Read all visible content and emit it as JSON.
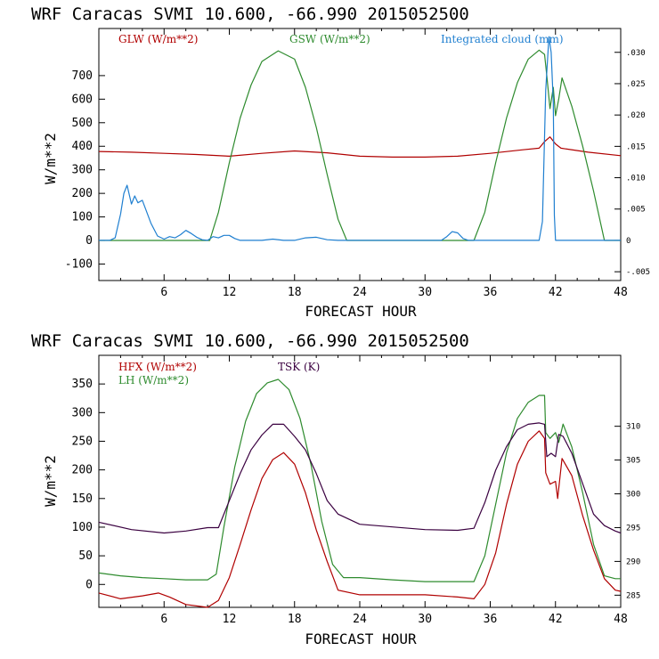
{
  "chart_data": [
    {
      "type": "line",
      "title": "WRF   Caracas SVMI  10.600, -66.990  2015052500",
      "xlabel": "FORECAST HOUR",
      "ylabel": "W/m**2",
      "xlim": [
        0,
        48
      ],
      "ylim": [
        -170,
        900
      ],
      "y2lim": [
        -0.0064,
        0.0338
      ],
      "xticks": [
        6,
        12,
        18,
        24,
        30,
        36,
        42,
        48
      ],
      "yticks": [
        -100,
        0,
        100,
        200,
        300,
        400,
        500,
        600,
        700
      ],
      "y2ticks": [
        {
          "v": -0.005,
          "label": "-.005"
        },
        {
          "v": 0,
          "label": "0"
        },
        {
          "v": 0.005,
          "label": ".005"
        },
        {
          "v": 0.01,
          "label": ".010"
        },
        {
          "v": 0.015,
          "label": ".015"
        },
        {
          "v": 0.02,
          "label": ".020"
        },
        {
          "v": 0.025,
          "label": ".025"
        },
        {
          "v": 0.03,
          "label": ".030"
        }
      ],
      "series": [
        {
          "name": "GLW (W/m**2)",
          "color": "#b00000",
          "axis": "left",
          "x": [
            0,
            3,
            6,
            9,
            12,
            15,
            18,
            21,
            24,
            27,
            30,
            33,
            36,
            39,
            40.5,
            41,
            41.5,
            42,
            42.5,
            45,
            48
          ],
          "y": [
            378,
            375,
            370,
            365,
            358,
            370,
            380,
            372,
            358,
            354,
            354,
            358,
            370,
            385,
            392,
            420,
            440,
            410,
            392,
            375,
            360
          ]
        },
        {
          "name": "GSW (W/m**2)",
          "color": "#2e8b2e",
          "axis": "left",
          "x": [
            0,
            10.2,
            11,
            12,
            13,
            14,
            15,
            16.5,
            18,
            19,
            20,
            21,
            22,
            22.8,
            34.5,
            35.5,
            36.5,
            37.5,
            38.5,
            39.5,
            40.5,
            41,
            41.2,
            41.5,
            41.8,
            42,
            42.3,
            42.6,
            43.5,
            44.5,
            45.5,
            46.5,
            48
          ],
          "y": [
            0,
            0,
            120,
            330,
            520,
            660,
            760,
            805,
            770,
            650,
            480,
            280,
            90,
            0,
            0,
            120,
            330,
            520,
            670,
            770,
            808,
            790,
            700,
            560,
            650,
            530,
            600,
            690,
            570,
            400,
            210,
            0,
            0
          ]
        },
        {
          "name": "Integrated cloud (mm)",
          "color": "#1f7fd0",
          "axis": "right",
          "x": [
            0,
            1,
            1.5,
            2,
            2.3,
            2.6,
            3,
            3.3,
            3.6,
            4,
            4.3,
            4.8,
            5.4,
            6,
            6.5,
            7,
            7.5,
            8,
            8.5,
            9,
            9.5,
            10,
            10.5,
            11,
            11.5,
            12,
            12.5,
            13,
            14,
            15,
            16,
            17,
            18,
            19,
            20,
            21,
            22,
            25,
            31.5,
            32,
            32.5,
            33,
            33.5,
            34,
            40.5,
            40.8,
            41.1,
            41.4,
            41.6,
            41.8,
            41.9,
            42,
            48
          ],
          "y": [
            0,
            0,
            0.0004,
            0.0042,
            0.0075,
            0.0088,
            0.0058,
            0.0071,
            0.006,
            0.0064,
            0.005,
            0.0027,
            0.0007,
            0.0002,
            0.0006,
            0.0004,
            0.0009,
            0.0016,
            0.0011,
            0.0005,
            0.0001,
            0,
            0.0006,
            0.0004,
            0.0008,
            0.0008,
            0.0003,
            0,
            0,
            0,
            0.0002,
            0,
            0,
            0.0004,
            0.0005,
            0.0001,
            0,
            0,
            0,
            0.0006,
            0.0014,
            0.0012,
            0.0003,
            0,
            0,
            0.003,
            0.024,
            0.0325,
            0.03,
            0.022,
            0.004,
            0,
            0
          ]
        }
      ]
    },
    {
      "type": "line",
      "title": "WRF   Caracas SVMI  10.600, -66.990  2015052500",
      "xlabel": "FORECAST HOUR",
      "ylabel": "W/m**2",
      "xlim": [
        0,
        48
      ],
      "ylim": [
        -40,
        400
      ],
      "y2lim": [
        283.2,
        320.5
      ],
      "xticks": [
        6,
        12,
        18,
        24,
        30,
        36,
        42,
        48
      ],
      "yticks": [
        0,
        50,
        100,
        150,
        200,
        250,
        300,
        350
      ],
      "y2ticks": [
        {
          "v": 285,
          "label": "285"
        },
        {
          "v": 290,
          "label": "290"
        },
        {
          "v": 295,
          "label": "295"
        },
        {
          "v": 300,
          "label": "300"
        },
        {
          "v": 305,
          "label": "305"
        },
        {
          "v": 310,
          "label": "310"
        }
      ],
      "series": [
        {
          "name": "HFX (W/m**2)",
          "color": "#b00000",
          "axis": "left",
          "x": [
            0,
            2,
            4,
            5.5,
            6.5,
            8,
            10,
            11,
            12,
            13,
            14,
            15,
            16,
            17,
            18,
            19,
            20,
            21,
            22,
            24,
            27,
            30,
            33,
            34.5,
            35.5,
            36.5,
            37.5,
            38.5,
            39.5,
            40.5,
            41,
            41.1,
            41.5,
            42,
            42.2,
            42.6,
            43.5,
            44.5,
            45.5,
            46.5,
            47.5,
            48
          ],
          "y": [
            -15,
            -25,
            -20,
            -15,
            -22,
            -35,
            -40,
            -28,
            12,
            70,
            130,
            185,
            218,
            230,
            210,
            160,
            95,
            40,
            -10,
            -18,
            -18,
            -18,
            -22,
            -25,
            0,
            55,
            140,
            210,
            250,
            268,
            255,
            195,
            175,
            180,
            150,
            220,
            190,
            120,
            60,
            10,
            -10,
            -12
          ]
        },
        {
          "name": "LH (W/m**2)",
          "color": "#2e8b2e",
          "axis": "left",
          "x": [
            0,
            2,
            4,
            6,
            8,
            10,
            10.8,
            11.5,
            12.5,
            13.5,
            14.5,
            15.5,
            16.5,
            17.5,
            18.5,
            19.5,
            20.5,
            21.5,
            22.5,
            24,
            27,
            30,
            33,
            34.5,
            35.5,
            36.5,
            37.5,
            38.5,
            39.5,
            40.5,
            41,
            41.1,
            41.5,
            42,
            42.3,
            42.7,
            43.5,
            44.5,
            45.5,
            46.5,
            47.5,
            48
          ],
          "y": [
            20,
            15,
            12,
            10,
            8,
            8,
            18,
            100,
            205,
            285,
            333,
            352,
            358,
            340,
            290,
            210,
            110,
            35,
            12,
            12,
            8,
            5,
            5,
            5,
            50,
            140,
            230,
            290,
            318,
            330,
            330,
            265,
            255,
            265,
            248,
            280,
            240,
            160,
            70,
            15,
            10,
            10
          ]
        },
        {
          "name": "TSK (K)",
          "color": "#3a0040",
          "axis": "right",
          "x": [
            0,
            3,
            6,
            8,
            10,
            11,
            12,
            13,
            14,
            15,
            16,
            17,
            18,
            19,
            20,
            21,
            22,
            24,
            27,
            30,
            33,
            34.5,
            35.5,
            36.5,
            37.5,
            38.5,
            39.5,
            40.5,
            41,
            41.2,
            41.6,
            42,
            42.3,
            42.7,
            43.5,
            44.5,
            45.5,
            46.5,
            47.5,
            48
          ],
          "y": [
            295.8,
            294.7,
            294.2,
            294.5,
            295,
            295,
            299,
            303,
            306.5,
            308.7,
            310.3,
            310.3,
            308.5,
            306.5,
            303,
            299,
            297,
            295.5,
            295.1,
            294.7,
            294.6,
            294.9,
            298.7,
            303.5,
            307,
            309.5,
            310.3,
            310.5,
            310.3,
            305.5,
            306,
            305.5,
            308.8,
            308.5,
            306,
            301.5,
            297,
            295.3,
            294.5,
            294.2
          ]
        }
      ]
    }
  ]
}
